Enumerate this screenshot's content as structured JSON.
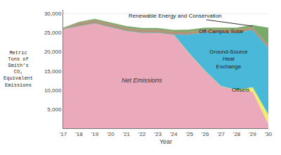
{
  "chart_data": {
    "type": "area",
    "stacked": true,
    "x": [
      2017,
      2018,
      2019,
      2020,
      2021,
      2022,
      2023,
      2024,
      2025,
      2026,
      2027,
      2028,
      2029,
      2030
    ],
    "xlabel": "Year",
    "ylabel": "Metric\nTons of\nSmith’s\nCO₂\nEquivalent\nEmissions",
    "xlim": [
      2017,
      2030
    ],
    "ylim": [
      0,
      31000
    ],
    "xticks": [
      {
        "value": 2017,
        "label": "'17"
      },
      {
        "value": 2018,
        "label": "'18"
      },
      {
        "value": 2019,
        "label": "'19"
      },
      {
        "value": 2020,
        "label": "'20"
      },
      {
        "value": 2021,
        "label": "'21"
      },
      {
        "value": 2022,
        "label": "'22"
      },
      {
        "value": 2023,
        "label": "'23"
      },
      {
        "value": 2024,
        "label": "'24"
      },
      {
        "value": 2025,
        "label": "'25"
      },
      {
        "value": 2026,
        "label": "'26"
      },
      {
        "value": 2027,
        "label": "'27"
      },
      {
        "value": 2028,
        "label": "'28"
      },
      {
        "value": 2029,
        "label": "'29"
      },
      {
        "value": 2030,
        "label": "'30"
      }
    ],
    "yticks": [
      {
        "value": 0,
        "label": null
      },
      {
        "value": 5000,
        "label": "5,000"
      },
      {
        "value": 10000,
        "label": "10,000"
      },
      {
        "value": 15000,
        "label": "15,000"
      },
      {
        "value": 20000,
        "label": "20,000"
      },
      {
        "value": 25000,
        "label": "25,000"
      },
      {
        "value": 30000,
        "label": "30,000"
      }
    ],
    "grid": "y",
    "series": [
      {
        "color": "#eaaabb",
        "values": [
          26000,
          26800,
          27500,
          26500,
          25500,
          25000,
          25000,
          24500,
          19500,
          15000,
          11000,
          10000,
          9500,
          1000
        ]
      },
      {
        "color": "#f0ee70",
        "values": [
          0,
          0,
          0,
          0,
          0,
          0,
          0,
          0,
          0,
          0,
          0,
          0,
          1200,
          2500
        ]
      },
      {
        "color": "#4ab8d8",
        "values": [
          0,
          0,
          0,
          0,
          0,
          0,
          0,
          0,
          5000,
          10000,
          14000,
          15000,
          15000,
          17500
        ]
      },
      {
        "color": "#b0957a",
        "values": [
          200,
          800,
          800,
          800,
          800,
          800,
          800,
          800,
          800,
          800,
          800,
          800,
          800,
          800
        ]
      },
      {
        "color": "#7aaa6a",
        "values": [
          100,
          200,
          300,
          400,
          400,
          400,
          400,
          400,
          500,
          500,
          500,
          500,
          500,
          4500
        ]
      }
    ],
    "annotations": [
      "Net Emissions",
      "Offsets",
      "Ground-Source\nHeat\nExchange",
      "Off-Campus Solar",
      "Renewable Energy and Conservation"
    ]
  }
}
